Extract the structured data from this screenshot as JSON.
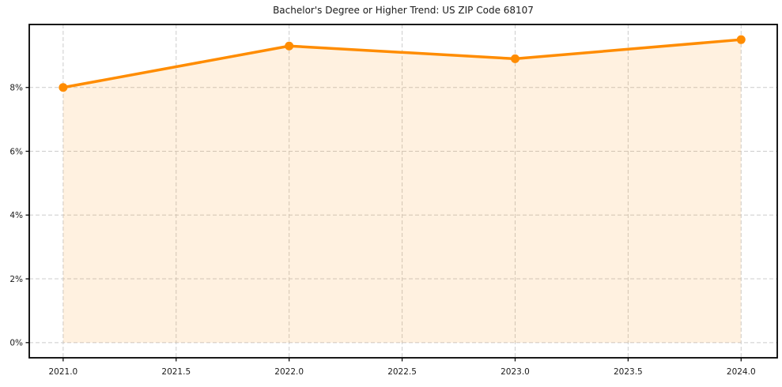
{
  "chart_data": {
    "type": "area",
    "title": "Bachelor's Degree or Higher Trend: US ZIP Code 68107",
    "xlabel": "",
    "ylabel": "",
    "x": [
      2021,
      2022,
      2023,
      2024
    ],
    "values": [
      8.0,
      9.3,
      8.9,
      9.5
    ],
    "x_ticks": [
      "2021.0",
      "2021.5",
      "2022.0",
      "2022.5",
      "2023.0",
      "2023.5",
      "2024.0"
    ],
    "x_tick_values": [
      2021.0,
      2021.5,
      2022.0,
      2022.5,
      2023.0,
      2023.5,
      2024.0
    ],
    "y_ticks": [
      "0%",
      "2%",
      "4%",
      "6%",
      "8%"
    ],
    "y_tick_values": [
      0,
      2,
      4,
      6,
      8
    ],
    "xlim": [
      2020.85,
      2024.16
    ],
    "ylim": [
      -0.475,
      9.975
    ],
    "fill_baseline": 0,
    "grid": true,
    "grid_style": "dashed",
    "legend": false,
    "line_color": "#ff8c00",
    "fill_opacity": 0.12,
    "grid_color": "#cccccc",
    "axis_color": "#000000",
    "text_color": "#1a1a1a"
  }
}
